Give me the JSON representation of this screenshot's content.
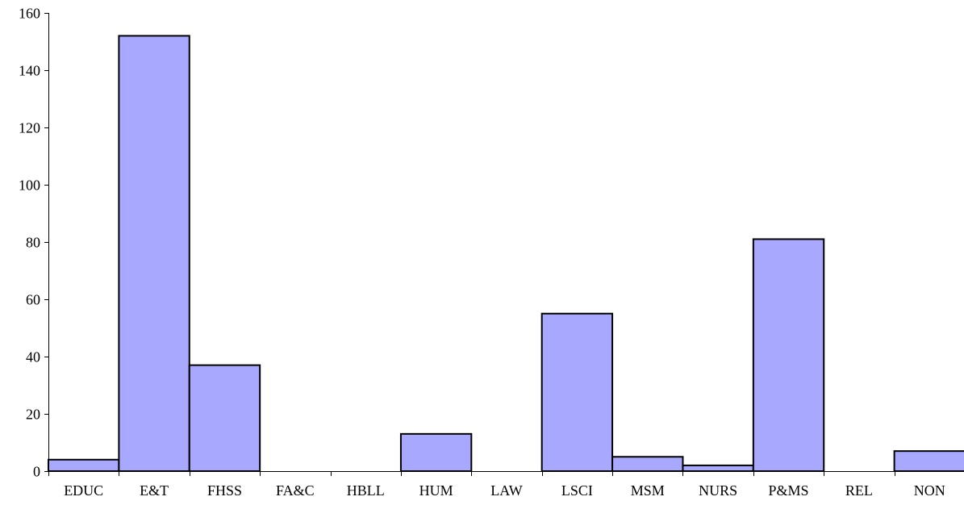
{
  "chart_data": {
    "type": "bar",
    "title": "",
    "xlabel": "",
    "ylabel": "",
    "categories": [
      "EDUC",
      "E&T",
      "FHSS",
      "FA&C",
      "HBLL",
      "HUM",
      "LAW",
      "LSCI",
      "MSM",
      "NURS",
      "P&MS",
      "REL",
      "NON"
    ],
    "values": [
      4,
      152,
      37,
      0,
      0,
      13,
      0,
      55,
      5,
      2,
      81,
      0,
      7
    ],
    "ylim": [
      0,
      160
    ],
    "yticks": [
      "0",
      "20",
      "40",
      "60",
      "80",
      "100",
      "120",
      "140",
      "160"
    ],
    "grid": false,
    "legend": "none",
    "bar_color": "#a8a8ff",
    "bar_edge_color": "#000000"
  }
}
